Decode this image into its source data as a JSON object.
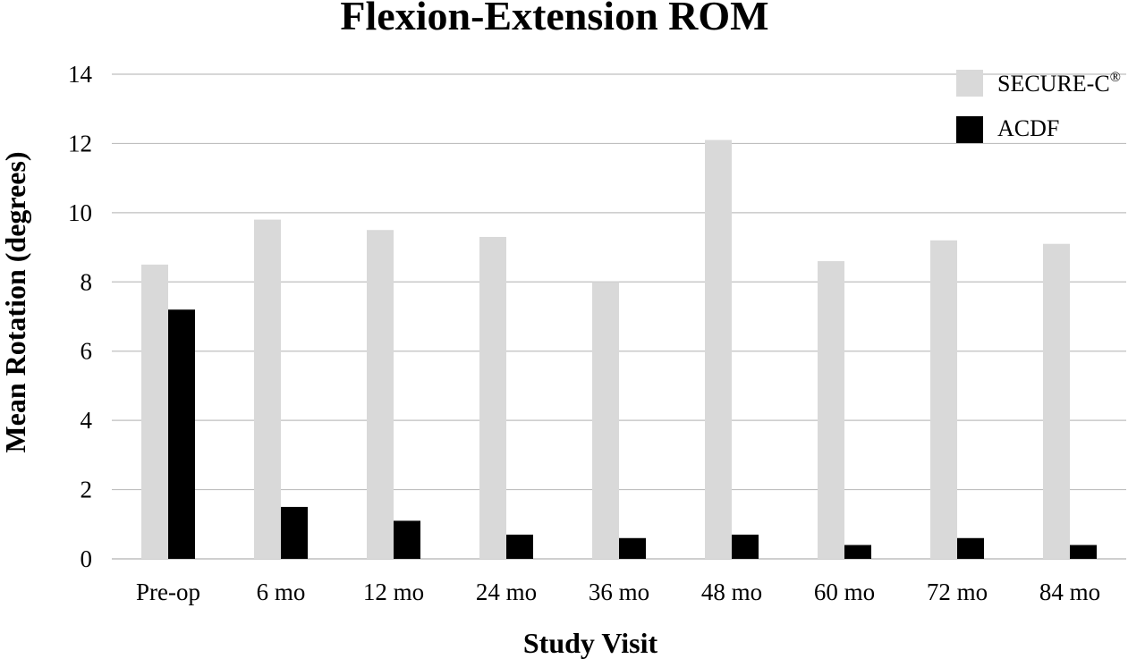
{
  "chart_data": {
    "type": "bar",
    "title": "Flexion-Extension ROM",
    "xlabel": "Study Visit",
    "ylabel": "Mean Rotation (degrees)",
    "ylim": [
      0,
      14
    ],
    "yticks": [
      "0",
      "2",
      "4",
      "6",
      "8",
      "10",
      "12",
      "14"
    ],
    "grid": true,
    "legend_position": "top-right",
    "categories": [
      "Pre-op",
      "6 mo",
      "12 mo",
      "24 mo",
      "36 mo",
      "48 mo",
      "60 mo",
      "72 mo",
      "84 mo"
    ],
    "series": [
      {
        "name": "SECURE-C",
        "superscript": "®",
        "color": "#d9d9d9",
        "values": [
          8.5,
          9.8,
          9.5,
          9.3,
          8.0,
          12.1,
          8.6,
          9.2,
          9.1
        ]
      },
      {
        "name": "ACDF",
        "color": "#000000",
        "values": [
          7.2,
          1.5,
          1.1,
          0.7,
          0.6,
          0.7,
          0.4,
          0.6,
          0.4
        ]
      }
    ],
    "gridline_color": "#bfbfbf"
  }
}
